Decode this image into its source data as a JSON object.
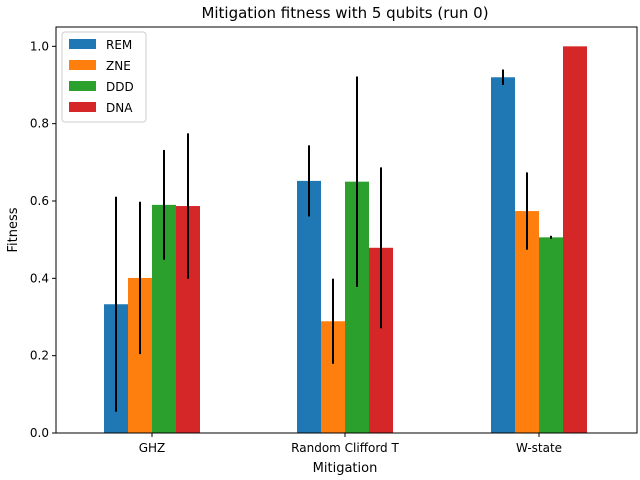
{
  "chart_data": {
    "type": "bar",
    "title": "Mitigation fitness with 5 qubits (run 0)",
    "xlabel": "Mitigation",
    "ylabel": "Fitness",
    "categories": [
      "GHZ",
      "Random Clifford T",
      "W-state"
    ],
    "ylim": [
      0,
      1.05
    ],
    "yticks": [
      0.0,
      0.2,
      0.4,
      0.6,
      0.8,
      1.0
    ],
    "ytick_labels": [
      "0.0",
      "0.2",
      "0.4",
      "0.6",
      "0.8",
      "1.0"
    ],
    "legend_position": "top-left",
    "grid": false,
    "series": [
      {
        "name": "REM",
        "color": "#1f77b4",
        "values": [
          0.333,
          0.652,
          0.92
        ],
        "errors": [
          0.278,
          0.092,
          0.02
        ]
      },
      {
        "name": "ZNE",
        "color": "#ff7f0e",
        "values": [
          0.401,
          0.289,
          0.574
        ],
        "errors": [
          0.197,
          0.11,
          0.1
        ]
      },
      {
        "name": "DDD",
        "color": "#2ca02c",
        "values": [
          0.59,
          0.65,
          0.506
        ],
        "errors": [
          0.142,
          0.272,
          0.004
        ]
      },
      {
        "name": "DNA",
        "color": "#d62728",
        "values": [
          0.587,
          0.479,
          1.0
        ],
        "errors": [
          0.188,
          0.208,
          0.0
        ]
      }
    ]
  }
}
